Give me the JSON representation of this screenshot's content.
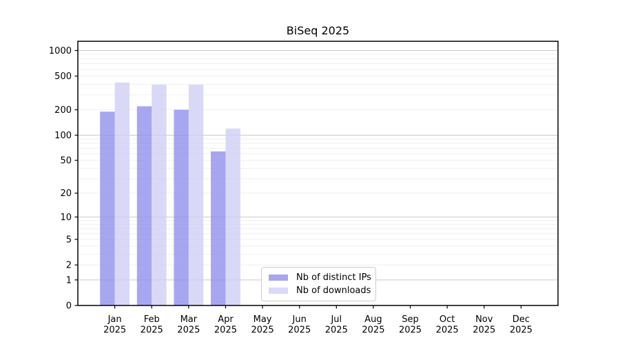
{
  "figure": {
    "background": "#ffffff"
  },
  "chart_data": {
    "type": "bar",
    "title": "BiSeq 2025",
    "xlabel": "",
    "ylabel": "",
    "categories": [
      "Jan\n2025",
      "Feb\n2025",
      "Mar\n2025",
      "Apr\n2025",
      "May\n2025",
      "Jun\n2025",
      "Jul\n2025",
      "Aug\n2025",
      "Sep\n2025",
      "Oct\n2025",
      "Nov\n2025",
      "Dec\n2025"
    ],
    "series": [
      {
        "name": "Nb of distinct IPs",
        "color": "rgba(144,144,238,0.8)",
        "legend_color": "#a6a6f1",
        "values": [
          190,
          220,
          200,
          64,
          0,
          0,
          0,
          0,
          0,
          0,
          0,
          0
        ]
      },
      {
        "name": "Nb of downloads",
        "color": "rgba(208,208,245,0.8)",
        "legend_color": "#d9d9f8",
        "values": [
          420,
          395,
          395,
          120,
          0,
          0,
          0,
          0,
          0,
          0,
          0,
          0
        ]
      }
    ],
    "yscale": "log1p",
    "yticks": [
      0,
      1,
      2,
      5,
      10,
      20,
      50,
      100,
      200,
      500,
      1000
    ],
    "ylim": [
      0,
      1285
    ],
    "grid": "horizontal major gray at powers of 10, faint minors between",
    "legend_position": "lower center",
    "colors": {
      "major_gridline": "#c9c9c9",
      "minor_gridline": "#efefef",
      "spine": "#000000"
    }
  }
}
